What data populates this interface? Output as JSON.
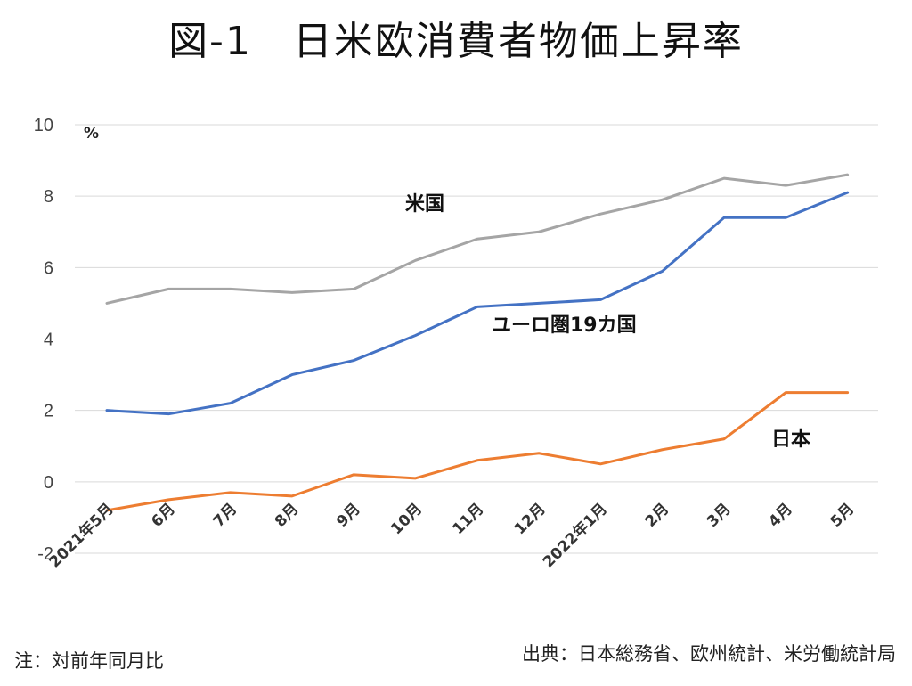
{
  "title": "図-1　日米欧消費者物価上昇率",
  "note": "注：対前年同月比",
  "source": "出典：日本総務省、欧州統計、米労働統計局",
  "chart_data": {
    "type": "line",
    "unit_label": "%",
    "categories": [
      "2021年5月",
      "6月",
      "7月",
      "8月",
      "9月",
      "10月",
      "11月",
      "12月",
      "2022年1月",
      "2月",
      "3月",
      "4月",
      "5月"
    ],
    "ylim": [
      -2,
      10
    ],
    "yticks": [
      -2,
      0,
      2,
      4,
      6,
      8,
      10
    ],
    "grid": true,
    "series": [
      {
        "name": "米国",
        "color": "#a5a5a5",
        "values": [
          5.0,
          5.4,
          5.4,
          5.3,
          5.4,
          6.2,
          6.8,
          7.0,
          7.5,
          7.9,
          8.5,
          8.3,
          8.6
        ]
      },
      {
        "name": "ユーロ圏19カ国",
        "color": "#4472c4",
        "values": [
          2.0,
          1.9,
          2.2,
          3.0,
          3.4,
          4.1,
          4.9,
          5.0,
          5.1,
          5.9,
          7.4,
          7.4,
          8.1
        ]
      },
      {
        "name": "日本",
        "color": "#ed7d31",
        "values": [
          -0.8,
          -0.5,
          -0.3,
          -0.4,
          0.2,
          0.1,
          0.6,
          0.8,
          0.5,
          0.9,
          1.2,
          2.5,
          2.5
        ]
      }
    ]
  }
}
